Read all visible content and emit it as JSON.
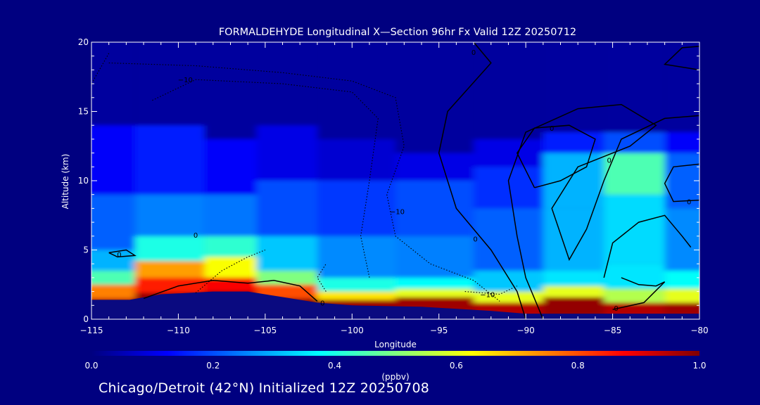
{
  "chart_data": {
    "type": "heatmap",
    "title": "FORMALDEHYDE Longitudinal X—Section 96hr  Fx Valid 12Z 20250712",
    "xlabel": "Longitude",
    "ylabel": "Altitude (km)",
    "xlim": [
      -115,
      -80
    ],
    "ylim": [
      0,
      20
    ],
    "x_ticks": [
      "−115",
      "−110",
      "−105",
      "−100",
      "−95",
      "−90",
      "−85",
      "−80"
    ],
    "y_ticks": [
      "0",
      "5",
      "10",
      "15",
      "20"
    ],
    "grid": false,
    "colorbar": {
      "label": "(ppbv)",
      "range": [
        0.0,
        1.0
      ],
      "ticks": [
        "0.0",
        "0.2",
        "0.4",
        "0.6",
        "0.8",
        "1.0"
      ],
      "colormap": [
        "#000080",
        "#0000ff",
        "#0080ff",
        "#00ffff",
        "#80ff80",
        "#ffff00",
        "#ff8000",
        "#ff0000",
        "#800000"
      ]
    },
    "field": [
      {
        "lon": -115,
        "layers": [
          [
            0,
            1.5,
            0.95
          ],
          [
            1.5,
            2.5,
            0.75
          ],
          [
            2.5,
            3.5,
            0.45
          ],
          [
            3.5,
            5,
            0.3
          ],
          [
            5,
            9,
            0.22
          ],
          [
            9,
            14,
            0.12
          ],
          [
            14,
            20,
            0.03
          ]
        ]
      },
      {
        "lon": -110,
        "layers": [
          [
            0,
            1.9,
            0.98
          ],
          [
            1.9,
            3,
            0.85
          ],
          [
            3,
            4.2,
            0.72
          ],
          [
            4.2,
            6,
            0.4
          ],
          [
            6,
            9,
            0.25
          ],
          [
            9,
            14,
            0.15
          ],
          [
            14,
            20,
            0.03
          ]
        ]
      },
      {
        "lon": -107,
        "layers": [
          [
            0,
            2,
            0.98
          ],
          [
            2,
            3,
            0.88
          ],
          [
            3,
            4.5,
            0.62
          ],
          [
            4.5,
            6,
            0.42
          ],
          [
            6,
            9,
            0.24
          ],
          [
            9,
            13,
            0.12
          ],
          [
            13,
            20,
            0.03
          ]
        ]
      },
      {
        "lon": -104,
        "layers": [
          [
            0,
            1.5,
            0.98
          ],
          [
            1.5,
            2.5,
            0.8
          ],
          [
            2.5,
            3.5,
            0.5
          ],
          [
            3.5,
            6,
            0.32
          ],
          [
            6,
            10,
            0.2
          ],
          [
            10,
            14,
            0.1
          ],
          [
            14,
            20,
            0.03
          ]
        ]
      },
      {
        "lon": -100,
        "layers": [
          [
            0,
            1.4,
            0.97
          ],
          [
            1.4,
            2,
            0.65
          ],
          [
            2,
            3,
            0.4
          ],
          [
            3,
            6,
            0.26
          ],
          [
            6,
            10,
            0.18
          ],
          [
            10,
            13,
            0.08
          ],
          [
            13,
            20,
            0.03
          ]
        ]
      },
      {
        "lon": -95,
        "layers": [
          [
            0,
            1.6,
            0.97
          ],
          [
            1.6,
            2.2,
            0.6
          ],
          [
            2.2,
            3,
            0.38
          ],
          [
            3,
            6,
            0.25
          ],
          [
            6,
            10,
            0.2
          ],
          [
            10,
            12,
            0.1
          ],
          [
            12,
            20,
            0.03
          ]
        ]
      },
      {
        "lon": -91,
        "layers": [
          [
            0,
            1.2,
            0.95
          ],
          [
            1.2,
            2,
            0.6
          ],
          [
            2,
            3.5,
            0.32
          ],
          [
            3.5,
            8,
            0.22
          ],
          [
            8,
            11,
            0.17
          ],
          [
            11,
            13,
            0.1
          ],
          [
            13,
            20,
            0.03
          ]
        ]
      },
      {
        "lon": -87,
        "layers": [
          [
            0,
            1.6,
            0.98
          ],
          [
            1.6,
            2.4,
            0.6
          ],
          [
            2.4,
            3.5,
            0.35
          ],
          [
            3.5,
            8,
            0.3
          ],
          [
            8,
            12,
            0.3
          ],
          [
            12,
            13.5,
            0.15
          ],
          [
            13.5,
            20,
            0.03
          ]
        ]
      },
      {
        "lon": -84,
        "layers": [
          [
            0,
            1.2,
            0.95
          ],
          [
            1.2,
            2.2,
            0.55
          ],
          [
            2.2,
            4,
            0.35
          ],
          [
            4,
            9,
            0.34
          ],
          [
            9,
            12,
            0.45
          ],
          [
            12,
            13.5,
            0.2
          ],
          [
            13.5,
            20,
            0.03
          ]
        ]
      },
      {
        "lon": -80,
        "layers": [
          [
            0,
            1.2,
            0.97
          ],
          [
            1.2,
            2.2,
            0.6
          ],
          [
            2.2,
            3.5,
            0.38
          ],
          [
            3.5,
            8,
            0.26
          ],
          [
            8,
            12,
            0.22
          ],
          [
            12,
            13.5,
            0.12
          ],
          [
            13.5,
            20,
            0.03
          ]
        ]
      }
    ],
    "terrain": [
      [
        -115,
        1.4
      ],
      [
        -112.8,
        1.4
      ],
      [
        -111,
        1.8
      ],
      [
        -108,
        2.0
      ],
      [
        -106,
        2.0
      ],
      [
        -104,
        1.6
      ],
      [
        -102,
        1.2
      ],
      [
        -100,
        1.0
      ],
      [
        -96,
        0.9
      ],
      [
        -92,
        0.6
      ],
      [
        -90,
        0.4
      ],
      [
        -86,
        0.4
      ],
      [
        -83,
        0.4
      ],
      [
        -80,
        0.4
      ]
    ],
    "contours": [
      {
        "style": "solid",
        "points": [
          [
            -93,
            20
          ],
          [
            -92,
            18.5
          ],
          [
            -94.5,
            15
          ],
          [
            -95,
            12
          ],
          [
            -94,
            8
          ],
          [
            -92,
            5
          ],
          [
            -90.5,
            2
          ],
          [
            -90,
            0
          ]
        ]
      },
      {
        "style": "solid",
        "points": [
          [
            -89,
            0
          ],
          [
            -90,
            3
          ],
          [
            -90.5,
            6
          ],
          [
            -91,
            10
          ],
          [
            -90,
            13.5
          ],
          [
            -87,
            15.2
          ],
          [
            -84.5,
            15.5
          ],
          [
            -82.5,
            14
          ],
          [
            -84,
            12.5
          ],
          [
            -87,
            11
          ],
          [
            -88.5,
            8
          ],
          [
            -87.5,
            4.3
          ],
          [
            -86.5,
            6.5
          ],
          [
            -85.5,
            10
          ],
          [
            -84.5,
            13
          ],
          [
            -82,
            14.5
          ],
          [
            -80,
            14.7
          ]
        ]
      },
      {
        "style": "solid",
        "points": [
          [
            -89.5,
            9.5
          ],
          [
            -90.5,
            12
          ],
          [
            -89.5,
            13.8
          ],
          [
            -87.5,
            14
          ],
          [
            -86,
            13
          ],
          [
            -86.5,
            11
          ],
          [
            -88,
            10
          ],
          [
            -89.5,
            9.5
          ]
        ]
      },
      {
        "style": "solid",
        "points": [
          [
            -85.5,
            3
          ],
          [
            -85,
            5.5
          ],
          [
            -83.5,
            7
          ],
          [
            -82,
            7.5
          ],
          [
            -81,
            6
          ],
          [
            -80.5,
            5.2
          ]
        ]
      },
      {
        "style": "solid",
        "points": [
          [
            -84.5,
            3
          ],
          [
            -83.5,
            2.5
          ],
          [
            -82.5,
            2.4
          ],
          [
            -82,
            2.7
          ],
          [
            -83.2,
            1.2
          ],
          [
            -85,
            0.7
          ]
        ]
      },
      {
        "style": "solid",
        "points": [
          [
            -80,
            11.2
          ],
          [
            -81.5,
            11
          ],
          [
            -82,
            9.8
          ],
          [
            -81.5,
            8.5
          ],
          [
            -80,
            8.6
          ]
        ]
      },
      {
        "style": "solid",
        "points": [
          [
            -80,
            19.7
          ],
          [
            -81,
            19.6
          ],
          [
            -82,
            18.4
          ],
          [
            -80,
            18
          ]
        ]
      },
      {
        "style": "solid",
        "points": [
          [
            -112,
            1.5
          ],
          [
            -110,
            2.4
          ],
          [
            -108,
            2.8
          ],
          [
            -106,
            2.6
          ],
          [
            -104.5,
            2.8
          ],
          [
            -103,
            2.4
          ],
          [
            -102,
            1.3
          ]
        ]
      },
      {
        "style": "solid",
        "points": [
          [
            -114,
            4.8
          ],
          [
            -113,
            5
          ],
          [
            -112.5,
            4.6
          ],
          [
            -113.5,
            4.5
          ],
          [
            -114,
            4.8
          ]
        ]
      },
      {
        "style": "dotted",
        "points": [
          [
            -114,
            18.5
          ],
          [
            -109,
            18.3
          ],
          [
            -104,
            17.8
          ],
          [
            -100,
            17.2
          ],
          [
            -97.5,
            16
          ],
          [
            -97,
            12.5
          ],
          [
            -98,
            9
          ],
          [
            -97.5,
            6
          ],
          [
            -95.5,
            4
          ],
          [
            -93,
            2.8
          ],
          [
            -91.5,
            1.3
          ]
        ]
      },
      {
        "style": "dotted",
        "points": [
          [
            -111.5,
            15.8
          ],
          [
            -109,
            17.3
          ],
          [
            -104,
            17
          ],
          [
            -100,
            16.4
          ],
          [
            -98.5,
            14.5
          ],
          [
            -99,
            10
          ],
          [
            -99.5,
            6
          ],
          [
            -99,
            3
          ]
        ]
      },
      {
        "style": "dotted",
        "points": [
          [
            -114,
            19.2
          ],
          [
            -115,
            17
          ],
          [
            -115,
            10
          ]
        ]
      },
      {
        "style": "dotted",
        "points": [
          [
            -109,
            1.9
          ],
          [
            -107.5,
            3.5
          ],
          [
            -106,
            4.5
          ],
          [
            -105,
            5
          ]
        ]
      },
      {
        "style": "dotted",
        "points": [
          [
            -101.5,
            2
          ],
          [
            -102,
            3
          ],
          [
            -101.5,
            4
          ]
        ]
      },
      {
        "style": "dotted",
        "points": [
          [
            -93.5,
            2
          ],
          [
            -91.5,
            1.8
          ],
          [
            -90.5,
            2.4
          ]
        ]
      }
    ],
    "contour_labels": [
      {
        "lon": -109.6,
        "alt": 17.3,
        "text": "−10"
      },
      {
        "lon": -97.4,
        "alt": 7.8,
        "text": "−10"
      },
      {
        "lon": -92.2,
        "alt": 1.8,
        "text": "−10"
      },
      {
        "lon": -93,
        "alt": 19.3,
        "text": "0"
      },
      {
        "lon": -88.5,
        "alt": 13.8,
        "text": "0"
      },
      {
        "lon": -85.2,
        "alt": 11.5,
        "text": "0"
      },
      {
        "lon": -92.9,
        "alt": 5.8,
        "text": "0"
      },
      {
        "lon": -84.8,
        "alt": 0.8,
        "text": "0"
      },
      {
        "lon": -80.6,
        "alt": 8.5,
        "text": "0"
      },
      {
        "lon": -113.4,
        "alt": 4.7,
        "text": "0"
      },
      {
        "lon": -109,
        "alt": 6.1,
        "text": "0"
      },
      {
        "lon": -101.7,
        "alt": 1.2,
        "text": "0"
      }
    ]
  },
  "footer": "Chicago/Detroit (42°N) Initialized 12Z 20250708"
}
